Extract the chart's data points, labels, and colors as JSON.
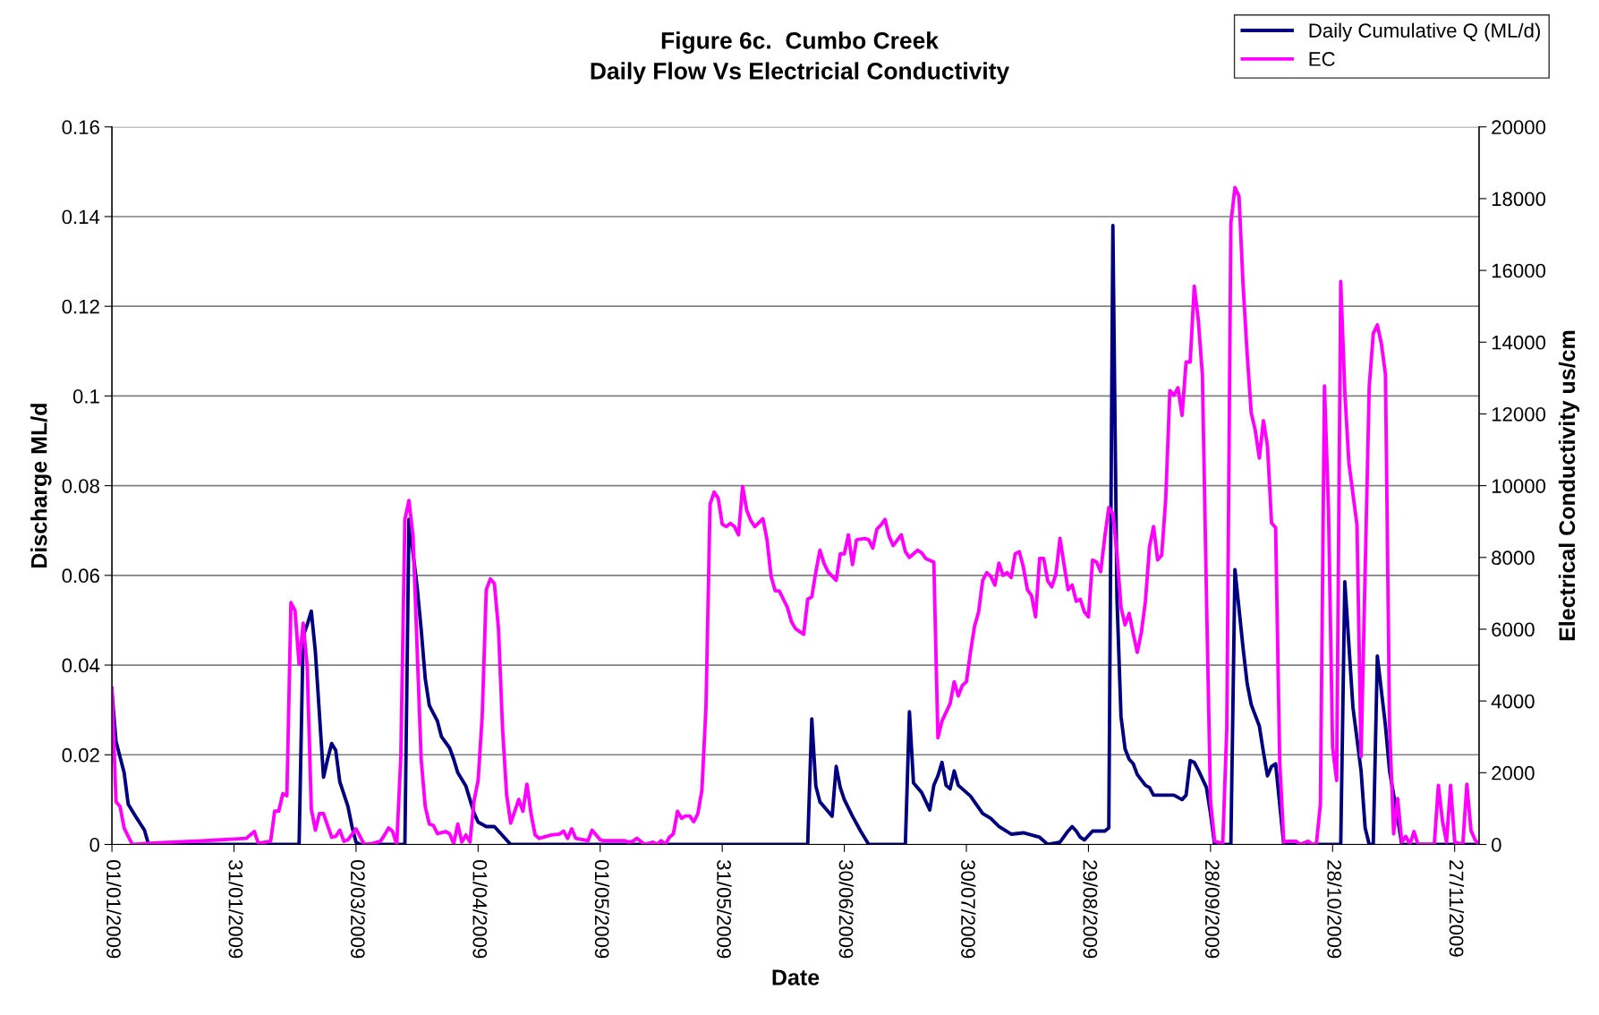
{
  "chart_data": {
    "type": "line",
    "title": "Figure 6c.  Cumbo Creek",
    "subtitle": "Daily Flow Vs Electricial Conductivity",
    "xlabel": "Date",
    "ylabel": "Discharge ML/d",
    "y2label": "Electrical Conductivity us/cm",
    "xlim": [
      "2009-01-01",
      "2009-12-03"
    ],
    "xticks": [
      {
        "value": "2009-01-01",
        "label": "01/01/2009"
      },
      {
        "value": "2009-01-31",
        "label": "31/01/2009"
      },
      {
        "value": "2009-03-02",
        "label": "02/03/2009"
      },
      {
        "value": "2009-04-01",
        "label": "01/04/2009"
      },
      {
        "value": "2009-05-01",
        "label": "01/05/2009"
      },
      {
        "value": "2009-05-31",
        "label": "31/05/2009"
      },
      {
        "value": "2009-06-30",
        "label": "30/06/2009"
      },
      {
        "value": "2009-07-30",
        "label": "30/07/2009"
      },
      {
        "value": "2009-08-29",
        "label": "29/08/2009"
      },
      {
        "value": "2009-09-28",
        "label": "28/09/2009"
      },
      {
        "value": "2009-10-28",
        "label": "28/10/2009"
      },
      {
        "value": "2009-11-27",
        "label": "27/11/2009"
      }
    ],
    "ylim": [
      0,
      0.16
    ],
    "yticks": [
      0,
      0.02,
      0.04,
      0.06,
      0.08,
      0.1,
      0.12,
      0.14,
      0.16
    ],
    "y2lim": [
      0,
      20000
    ],
    "y2ticks": [
      0,
      2000,
      4000,
      6000,
      8000,
      10000,
      12000,
      14000,
      16000,
      18000,
      20000
    ],
    "grid": "y",
    "legend": "top right",
    "marker": "none",
    "line_style": "solid",
    "series": [
      {
        "name": "Daily Cumulative Q (ML/d)",
        "color": "#000080",
        "x": [
          "2009-01-01",
          "2009-01-02",
          "2009-01-04",
          "2009-01-05",
          "2009-01-07",
          "2009-01-09",
          "2009-01-10",
          "2009-02-16",
          "2009-02-17",
          "2009-02-18",
          "2009-02-19",
          "2009-02-20",
          "2009-02-21",
          "2009-02-22",
          "2009-02-23",
          "2009-02-24",
          "2009-02-25",
          "2009-02-26",
          "2009-02-28",
          "2009-03-01",
          "2009-03-02",
          "2009-03-03",
          "2009-03-14",
          "2009-03-15",
          "2009-03-17",
          "2009-03-18",
          "2009-03-19",
          "2009-03-20",
          "2009-03-22",
          "2009-03-23",
          "2009-03-25",
          "2009-03-26",
          "2009-03-27",
          "2009-03-29",
          "2009-03-30",
          "2009-03-31",
          "2009-04-01",
          "2009-04-03",
          "2009-04-05",
          "2009-04-07",
          "2009-04-09",
          "2009-06-21",
          "2009-06-22",
          "2009-06-23",
          "2009-06-24",
          "2009-06-26",
          "2009-06-27",
          "2009-06-28",
          "2009-06-29",
          "2009-06-30",
          "2009-07-02",
          "2009-07-04",
          "2009-07-06",
          "2009-07-15",
          "2009-07-16",
          "2009-07-17",
          "2009-07-19",
          "2009-07-21",
          "2009-07-22",
          "2009-07-23",
          "2009-07-24",
          "2009-07-25",
          "2009-07-26",
          "2009-07-27",
          "2009-07-28",
          "2009-07-31",
          "2009-08-03",
          "2009-08-05",
          "2009-08-07",
          "2009-08-10",
          "2009-08-13",
          "2009-08-15",
          "2009-08-17",
          "2009-08-19",
          "2009-08-22",
          "2009-08-24",
          "2009-08-25",
          "2009-08-26",
          "2009-08-27",
          "2009-08-28",
          "2009-08-30",
          "2009-09-01",
          "2009-09-02",
          "2009-09-03",
          "2009-09-04",
          "2009-09-05",
          "2009-09-06",
          "2009-09-07",
          "2009-09-08",
          "2009-09-09",
          "2009-09-10",
          "2009-09-12",
          "2009-09-13",
          "2009-09-14",
          "2009-09-15",
          "2009-09-17",
          "2009-09-19",
          "2009-09-21",
          "2009-09-22",
          "2009-09-23",
          "2009-09-24",
          "2009-09-25",
          "2009-09-27",
          "2009-09-28",
          "2009-09-29",
          "2009-10-03",
          "2009-10-04",
          "2009-10-06",
          "2009-10-07",
          "2009-10-08",
          "2009-10-10",
          "2009-10-11",
          "2009-10-12",
          "2009-10-13",
          "2009-10-14",
          "2009-10-16",
          "2009-10-30",
          "2009-10-31",
          "2009-11-02",
          "2009-11-04",
          "2009-11-05",
          "2009-11-06",
          "2009-11-07",
          "2009-11-08",
          "2009-11-10",
          "2009-11-11",
          "2009-11-13",
          "2009-11-14",
          "2009-12-03"
        ],
        "values": [
          0.034,
          0.023,
          0.016,
          0.009,
          0.006,
          0.0032,
          0,
          0,
          0.0465,
          0.049,
          0.052,
          0.043,
          0.029,
          0.015,
          0.019,
          0.0225,
          0.021,
          0.014,
          0.0085,
          0.004,
          0.0005,
          0,
          0,
          0.0725,
          0.0575,
          0.048,
          0.037,
          0.031,
          0.0275,
          0.024,
          0.0215,
          0.019,
          0.016,
          0.013,
          0.01,
          0.007,
          0.005,
          0.004,
          0.004,
          0.002,
          0,
          0,
          0.028,
          0.013,
          0.0095,
          0.0074,
          0.0063,
          0.0174,
          0.0127,
          0.01,
          0.0063,
          0.003,
          0,
          0,
          0.0296,
          0.0137,
          0.0116,
          0.0077,
          0.0132,
          0.0153,
          0.0183,
          0.0132,
          0.0124,
          0.0164,
          0.0132,
          0.0108,
          0.0069,
          0.0058,
          0.004,
          0.0023,
          0.0026,
          0.0021,
          0.0016,
          0,
          0.0005,
          0.003,
          0.004,
          0.003,
          0.0016,
          0.001,
          0.003,
          0.003,
          0.003,
          0.0037,
          0.138,
          0.055,
          0.0285,
          0.0213,
          0.019,
          0.018,
          0.0156,
          0.0132,
          0.0127,
          0.011,
          0.011,
          0.011,
          0.011,
          0.01,
          0.011,
          0.0187,
          0.0183,
          0.0166,
          0.0127,
          0.0069,
          0,
          0,
          0.0613,
          0.0438,
          0.0359,
          0.0312,
          0.0264,
          0.0206,
          0.0153,
          0.0174,
          0.018,
          0,
          0,
          0.0586,
          0.0306,
          0.0164,
          0.0037,
          0,
          0,
          0.042,
          0.0264,
          0.0164,
          0.0058,
          0,
          0
        ]
      },
      {
        "name": "EC",
        "color": "#ff00ff",
        "axis": "y2",
        "x": [
          "2009-01-01",
          "2009-01-02",
          "2009-01-03",
          "2009-01-04",
          "2009-01-06",
          "2009-01-11",
          "2009-01-23",
          "2009-02-03",
          "2009-02-05",
          "2009-02-06",
          "2009-02-09",
          "2009-02-10",
          "2009-02-11",
          "2009-02-12",
          "2009-02-13",
          "2009-02-14",
          "2009-02-15",
          "2009-02-16",
          "2009-02-17",
          "2009-02-18",
          "2009-02-19",
          "2009-02-20",
          "2009-02-21",
          "2009-02-22",
          "2009-02-23",
          "2009-02-24",
          "2009-02-25",
          "2009-02-26",
          "2009-02-27",
          "2009-02-28",
          "2009-03-02",
          "2009-03-04",
          "2009-03-06",
          "2009-03-08",
          "2009-03-09",
          "2009-03-10",
          "2009-03-11",
          "2009-03-12",
          "2009-03-13",
          "2009-03-14",
          "2009-03-15",
          "2009-03-16",
          "2009-03-18",
          "2009-03-19",
          "2009-03-20",
          "2009-03-21",
          "2009-03-22",
          "2009-03-24",
          "2009-03-25",
          "2009-03-26",
          "2009-03-27",
          "2009-03-28",
          "2009-03-29",
          "2009-03-30",
          "2009-03-31",
          "2009-04-01",
          "2009-04-02",
          "2009-04-03",
          "2009-04-04",
          "2009-04-05",
          "2009-04-06",
          "2009-04-07",
          "2009-04-08",
          "2009-04-09",
          "2009-04-11",
          "2009-04-12",
          "2009-04-13",
          "2009-04-14",
          "2009-04-15",
          "2009-04-16",
          "2009-04-19",
          "2009-04-21",
          "2009-04-22",
          "2009-04-23",
          "2009-04-24",
          "2009-04-25",
          "2009-04-28",
          "2009-04-29",
          "2009-05-01",
          "2009-05-02",
          "2009-05-07",
          "2009-05-08",
          "2009-05-09",
          "2009-05-10",
          "2009-05-12",
          "2009-05-14",
          "2009-05-15",
          "2009-05-16",
          "2009-05-17",
          "2009-05-18",
          "2009-05-19",
          "2009-05-20",
          "2009-05-21",
          "2009-05-22",
          "2009-05-23",
          "2009-05-24",
          "2009-05-25",
          "2009-05-26",
          "2009-05-27",
          "2009-05-28",
          "2009-05-29",
          "2009-05-30",
          "2009-05-31",
          "2009-06-01",
          "2009-06-02",
          "2009-06-03",
          "2009-06-04",
          "2009-06-05",
          "2009-06-06",
          "2009-06-07",
          "2009-06-08",
          "2009-06-10",
          "2009-06-11",
          "2009-06-12",
          "2009-06-13",
          "2009-06-14",
          "2009-06-16",
          "2009-06-17",
          "2009-06-18",
          "2009-06-20",
          "2009-06-21",
          "2009-06-22",
          "2009-06-23",
          "2009-06-24",
          "2009-06-25",
          "2009-06-26",
          "2009-06-28",
          "2009-06-29",
          "2009-06-30",
          "2009-07-01",
          "2009-07-02",
          "2009-07-03",
          "2009-07-05",
          "2009-07-06",
          "2009-07-07",
          "2009-07-08",
          "2009-07-09",
          "2009-07-10",
          "2009-07-11",
          "2009-07-12",
          "2009-07-14",
          "2009-07-15",
          "2009-07-16",
          "2009-07-18",
          "2009-07-19",
          "2009-07-20",
          "2009-07-22",
          "2009-07-23",
          "2009-07-24",
          "2009-07-26",
          "2009-07-27",
          "2009-07-28",
          "2009-07-29",
          "2009-07-30",
          "2009-07-31",
          "2009-08-01",
          "2009-08-02",
          "2009-08-03",
          "2009-08-04",
          "2009-08-05",
          "2009-08-06",
          "2009-08-07",
          "2009-08-08",
          "2009-08-09",
          "2009-08-10",
          "2009-08-11",
          "2009-08-12",
          "2009-08-13",
          "2009-08-14",
          "2009-08-15",
          "2009-08-16",
          "2009-08-17",
          "2009-08-18",
          "2009-08-19",
          "2009-08-20",
          "2009-08-21",
          "2009-08-22",
          "2009-08-23",
          "2009-08-24",
          "2009-08-25",
          "2009-08-26",
          "2009-08-27",
          "2009-08-28",
          "2009-08-29",
          "2009-08-30",
          "2009-08-31",
          "2009-09-01",
          "2009-09-02",
          "2009-09-03",
          "2009-09-04",
          "2009-09-05",
          "2009-09-06",
          "2009-09-07",
          "2009-09-08",
          "2009-09-09",
          "2009-09-10",
          "2009-09-11",
          "2009-09-12",
          "2009-09-13",
          "2009-09-14",
          "2009-09-15",
          "2009-09-16",
          "2009-09-17",
          "2009-09-18",
          "2009-09-19",
          "2009-09-20",
          "2009-09-21",
          "2009-09-22",
          "2009-09-23",
          "2009-09-24",
          "2009-09-25",
          "2009-09-26",
          "2009-09-27",
          "2009-09-28",
          "2009-09-29",
          "2009-10-01",
          "2009-10-02",
          "2009-10-03",
          "2009-10-04",
          "2009-10-05",
          "2009-10-06",
          "2009-10-07",
          "2009-10-08",
          "2009-10-09",
          "2009-10-10",
          "2009-10-11",
          "2009-10-12",
          "2009-10-13",
          "2009-10-14",
          "2009-10-15",
          "2009-10-16",
          "2009-10-17",
          "2009-10-19",
          "2009-10-20",
          "2009-10-22",
          "2009-10-23",
          "2009-10-24",
          "2009-10-25",
          "2009-10-26",
          "2009-10-27",
          "2009-10-28",
          "2009-10-29",
          "2009-10-30",
          "2009-10-31",
          "2009-11-01",
          "2009-11-03",
          "2009-11-04",
          "2009-11-06",
          "2009-11-07",
          "2009-11-08",
          "2009-11-09",
          "2009-11-10",
          "2009-11-11",
          "2009-11-12",
          "2009-11-13",
          "2009-11-14",
          "2009-11-15",
          "2009-11-16",
          "2009-11-17",
          "2009-11-18",
          "2009-11-22",
          "2009-11-23",
          "2009-11-24",
          "2009-11-25",
          "2009-11-26",
          "2009-11-27",
          "2009-11-29",
          "2009-11-30",
          "2009-12-01",
          "2009-12-02",
          "2009-12-03"
        ],
        "values": [
          4360,
          1190,
          1060,
          460,
          0,
          40,
          100,
          170,
          360,
          30,
          90,
          930,
          930,
          1415,
          1360,
          6740,
          6520,
          5020,
          6170,
          4960,
          990,
          400,
          860,
          860,
          530,
          200,
          225,
          400,
          90,
          130,
          435,
          0,
          25,
          90,
          265,
          460,
          360,
          0,
          2450,
          9060,
          9585,
          8590,
          2380,
          1060,
          570,
          530,
          300,
          360,
          300,
          25,
          570,
          65,
          265,
          65,
          1220,
          1785,
          3570,
          7100,
          7400,
          7270,
          6015,
          3240,
          1390,
          595,
          1255,
          925,
          1680,
          860,
          265,
          170,
          265,
          290,
          370,
          170,
          435,
          170,
          105,
          400,
          130,
          105,
          105,
          65,
          90,
          170,
          0,
          65,
          0,
          105,
          0,
          200,
          300,
          925,
          730,
          795,
          795,
          635,
          860,
          1520,
          3835,
          9480,
          9820,
          9650,
          8925,
          8860,
          8950,
          8860,
          8630,
          9980,
          9320,
          9030,
          8860,
          9080,
          8490,
          7470,
          7070,
          7070,
          6610,
          6210,
          6015,
          5855,
          6835,
          6900,
          7600,
          8200,
          7840,
          7600,
          7360,
          8100,
          8100,
          8630,
          7800,
          8490,
          8530,
          8490,
          8260,
          8790,
          8900,
          9060,
          8590,
          8330,
          8630,
          8160,
          8000,
          8200,
          8130,
          7970,
          7870,
          2975,
          3440,
          3925,
          4535,
          4140,
          4430,
          4535,
          5355,
          6080,
          6480,
          7360,
          7575,
          7470,
          7230,
          7840,
          7500,
          7575,
          7440,
          8100,
          8160,
          7730,
          7100,
          6940,
          6345,
          7970,
          7970,
          7340,
          7180,
          7535,
          8530,
          7800,
          7100,
          7230,
          6780,
          6835,
          6480,
          6345,
          7930,
          7870,
          7600,
          8555,
          9390,
          9215,
          8130,
          6610,
          6120,
          6440,
          5880,
          5355,
          5910,
          6780,
          8290,
          8860,
          7930,
          8065,
          9650,
          12650,
          12520,
          12730,
          11960,
          13445,
          13445,
          15560,
          14610,
          13090,
          6940,
          1190,
          90,
          25,
          3240,
          17320,
          18310,
          18070,
          15600,
          13680,
          12030,
          11540,
          10770,
          11810,
          11100,
          8960,
          8830,
          2310,
          65,
          90,
          90,
          0,
          90,
          0,
          0,
          1120,
          12780,
          9320,
          2710,
          1785,
          15690,
          12625,
          10640,
          8900,
          2450,
          12760,
          14240,
          14480,
          13950,
          13090,
          3305,
          300,
          1280,
          65,
          225,
          0,
          360,
          0,
          0,
          1650,
          660,
          65,
          1650,
          65,
          0,
          1680,
          400,
          130,
          0
        ]
      }
    ]
  }
}
